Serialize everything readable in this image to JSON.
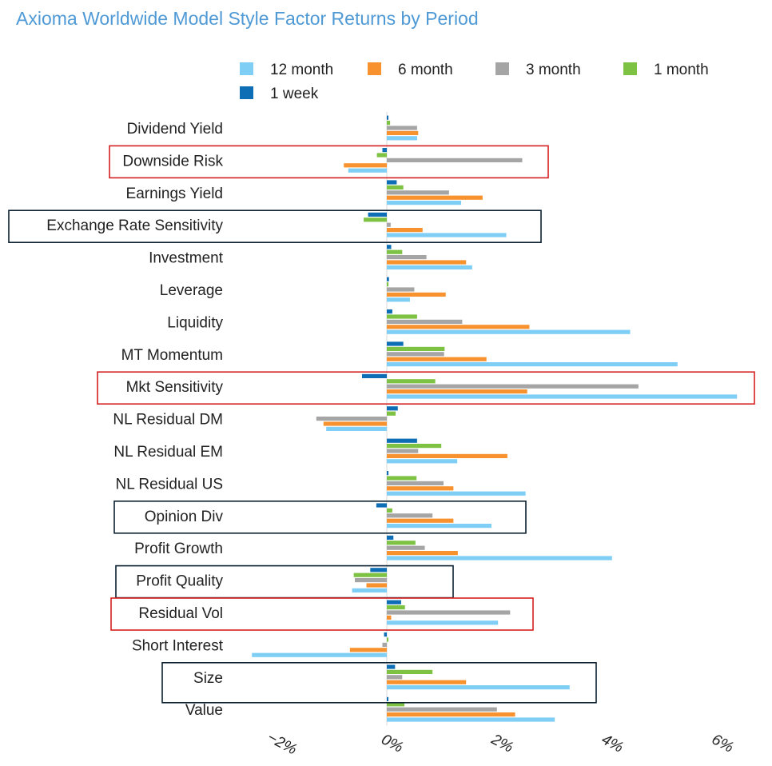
{
  "chart_data": {
    "type": "bar",
    "orientation": "horizontal",
    "title": "Axioma Worldwide Model Style Factor Returns by Period",
    "xlabel": "",
    "ylabel": "",
    "xlim": [
      -3,
      6.5
    ],
    "x_ticks": [
      -2,
      0,
      2,
      4,
      6
    ],
    "x_tick_labels": [
      "−2%",
      "0%",
      "2%",
      "4%",
      "6%"
    ],
    "legend_position": "top",
    "categories": [
      "Dividend Yield",
      "Downside Risk",
      "Earnings Yield",
      "Exchange Rate Sensitivity",
      "Investment",
      "Leverage",
      "Liquidity",
      "MT Momentum",
      "Mkt Sensitivity",
      "NL Residual DM",
      "NL Residual EM",
      "NL Residual US",
      "Opinion Div",
      "Profit Growth",
      "Profit Quality",
      "Residual Vol",
      "Short Interest",
      "Size",
      "Value"
    ],
    "highlighted": [
      {
        "category": "Downside Risk",
        "color": "#d42020"
      },
      {
        "category": "Exchange Rate Sensitivity",
        "color": "#0b2030"
      },
      {
        "category": "Mkt Sensitivity",
        "color": "#d42020"
      },
      {
        "category": "Opinion Div",
        "color": "#0b2030"
      },
      {
        "category": "Profit Quality",
        "color": "#0b2030"
      },
      {
        "category": "Residual Vol",
        "color": "#d42020"
      },
      {
        "category": "Size",
        "color": "#0b2030"
      }
    ],
    "series": [
      {
        "name": "12 month",
        "color": "#7ecef5",
        "values": [
          0.55,
          -0.7,
          1.35,
          2.17,
          1.55,
          0.42,
          4.42,
          5.28,
          6.36,
          -1.1,
          1.28,
          2.52,
          1.9,
          4.09,
          -0.63,
          2.02,
          -2.45,
          3.32,
          3.05
        ]
      },
      {
        "name": "6 month",
        "color": "#f7922f",
        "values": [
          0.57,
          -0.78,
          1.74,
          0.65,
          1.44,
          1.07,
          2.59,
          1.81,
          2.55,
          -1.15,
          2.19,
          1.21,
          1.21,
          1.29,
          -0.37,
          0.08,
          -0.67,
          1.44,
          2.33
        ]
      },
      {
        "name": "3 month",
        "color": "#a5a5a5",
        "values": [
          0.55,
          2.46,
          1.13,
          0.07,
          0.72,
          0.5,
          1.37,
          1.04,
          4.57,
          -1.28,
          0.57,
          1.03,
          0.83,
          0.69,
          -0.58,
          2.24,
          -0.08,
          0.28,
          2.0
        ]
      },
      {
        "name": "1 month",
        "color": "#7dc242",
        "values": [
          0.06,
          -0.18,
          0.3,
          -0.42,
          0.28,
          0.03,
          0.55,
          1.05,
          0.88,
          0.16,
          0.99,
          0.54,
          0.1,
          0.52,
          -0.6,
          0.33,
          0.0,
          0.83,
          0.32
        ]
      },
      {
        "name": "1 week",
        "color": "#0d6eb5",
        "values": [
          0.0,
          -0.08,
          0.18,
          -0.34,
          0.08,
          0.04,
          0.1,
          0.3,
          -0.45,
          0.2,
          0.55,
          0.03,
          -0.19,
          0.12,
          -0.3,
          0.26,
          -0.05,
          0.15,
          0.0
        ]
      }
    ]
  }
}
